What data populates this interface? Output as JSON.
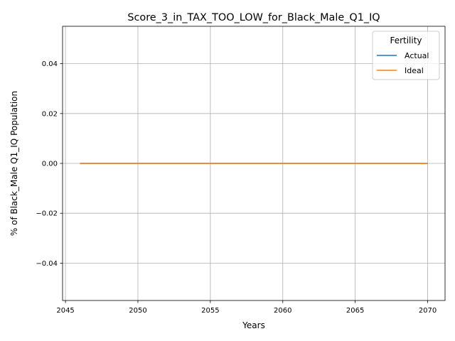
{
  "chart_data": {
    "type": "line",
    "title": "Score_3_in_TAX_TOO_LOW_for_Black_Male_Q1_IQ",
    "xlabel": "Years",
    "ylabel": "% of Black_Male Q1_IQ Population",
    "xlim": [
      2044.8,
      2071.2
    ],
    "ylim": [
      -0.055,
      0.055
    ],
    "xticks": [
      2045,
      2050,
      2055,
      2060,
      2065,
      2070
    ],
    "yticks": [
      -0.04,
      -0.02,
      0.0,
      0.02,
      0.04
    ],
    "ytick_labels": [
      "−0.04",
      "−0.02",
      "0.00",
      "0.02",
      "0.04"
    ],
    "grid": true,
    "legend": {
      "title": "Fertility",
      "placement": "top-right"
    },
    "x": [
      2046,
      2047,
      2048,
      2049,
      2050,
      2051,
      2052,
      2053,
      2054,
      2055,
      2056,
      2057,
      2058,
      2059,
      2060,
      2061,
      2062,
      2063,
      2064,
      2065,
      2066,
      2067,
      2068,
      2069,
      2070
    ],
    "series": [
      {
        "name": "Actual",
        "color": "#1f77b4",
        "values": [
          0,
          0,
          0,
          0,
          0,
          0,
          0,
          0,
          0,
          0,
          0,
          0,
          0,
          0,
          0,
          0,
          0,
          0,
          0,
          0,
          0,
          0,
          0,
          0,
          0
        ]
      },
      {
        "name": "Ideal",
        "color": "#ff7f0e",
        "values": [
          0,
          0,
          0,
          0,
          0,
          0,
          0,
          0,
          0,
          0,
          0,
          0,
          0,
          0,
          0,
          0,
          0,
          0,
          0,
          0,
          0,
          0,
          0,
          0,
          0
        ]
      }
    ]
  }
}
